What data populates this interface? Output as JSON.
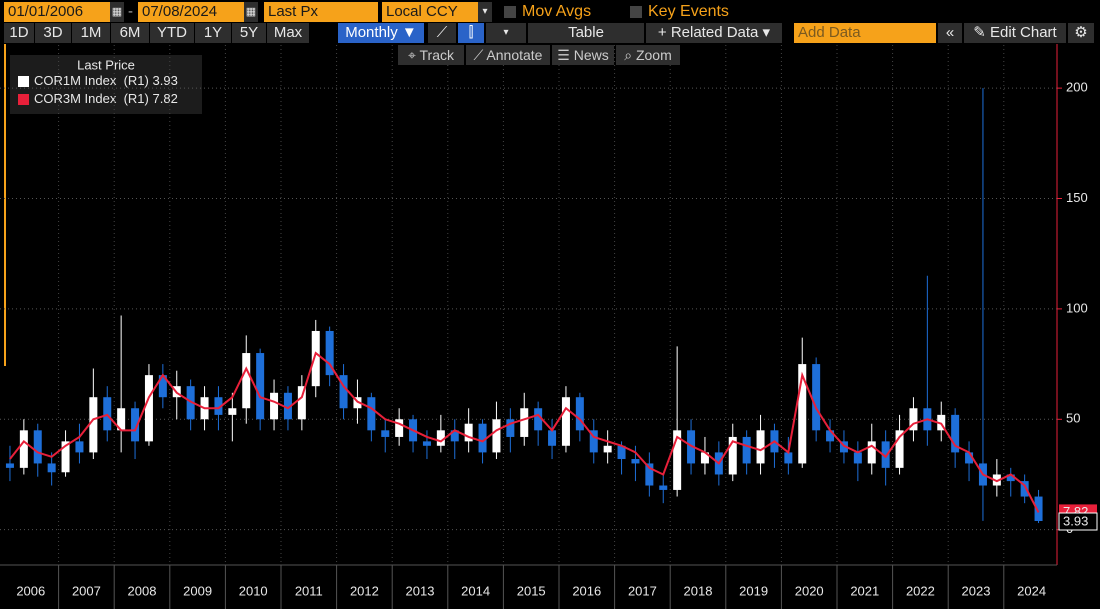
{
  "toolbar": {
    "start_date": "01/01/2006",
    "end_date": "07/08/2024",
    "field": "Last Px",
    "currency": "Local CCY",
    "mov_avgs": "Mov Avgs",
    "key_events": "Key Events",
    "periods": [
      "1D",
      "3D",
      "1M",
      "6M",
      "YTD",
      "1Y",
      "5Y",
      "Max"
    ],
    "frequency": "Monthly ▼",
    "table": "Table",
    "related_data": "+ Related Data ▾",
    "add_data": "Add Data",
    "edit_chart": "Edit Chart",
    "tools": [
      "Track",
      "Annotate",
      "News",
      "Zoom"
    ]
  },
  "chart_data": {
    "type": "candlestick",
    "legend_title": "Last Price",
    "categories": [
      "2006",
      null,
      null,
      null,
      "2007",
      null,
      null,
      null,
      "2008",
      null,
      null,
      null,
      "2009",
      null,
      null,
      null,
      "2010",
      null,
      null,
      null,
      "2011",
      null,
      null,
      null,
      "2012",
      null,
      null,
      null,
      "2013",
      null,
      null,
      null,
      "2014",
      null,
      null,
      null,
      "2015",
      null,
      null,
      null,
      "2016",
      null,
      null,
      null,
      "2017",
      null,
      null,
      null,
      "2018",
      null,
      null,
      null,
      "2019",
      null,
      null,
      null,
      "2020",
      null,
      null,
      null,
      "2021",
      null,
      null,
      null,
      "2022",
      null,
      null,
      null,
      "2023",
      null,
      null,
      null,
      "2024",
      null,
      null
    ],
    "candles": {
      "name": "COR1M Index  (R1)",
      "last_label": "3.93",
      "up_color": "#ffffff",
      "down_color": "#1e6fd9",
      "open": [
        30,
        28,
        45,
        30,
        26,
        40,
        35,
        60,
        45,
        55,
        40,
        70,
        60,
        65,
        50,
        60,
        52,
        55,
        80,
        50,
        62,
        50,
        65,
        90,
        70,
        55,
        60,
        45,
        42,
        50,
        40,
        38,
        45,
        40,
        48,
        35,
        50,
        42,
        55,
        45,
        38,
        60,
        45,
        35,
        38,
        32,
        30,
        20,
        18,
        45,
        30,
        35,
        25,
        42,
        30,
        45,
        35,
        30,
        75,
        45,
        40,
        35,
        30,
        40,
        28,
        45,
        55,
        45,
        52,
        35,
        30,
        20,
        25,
        22,
        15
      ],
      "high": [
        38,
        50,
        48,
        35,
        45,
        48,
        73,
        65,
        97,
        58,
        75,
        75,
        72,
        68,
        65,
        65,
        62,
        88,
        82,
        68,
        65,
        70,
        95,
        92,
        75,
        68,
        62,
        50,
        55,
        52,
        45,
        52,
        50,
        55,
        50,
        58,
        55,
        62,
        58,
        50,
        65,
        62,
        50,
        45,
        40,
        38,
        35,
        25,
        83,
        50,
        42,
        40,
        48,
        45,
        52,
        48,
        42,
        87,
        78,
        50,
        45,
        40,
        48,
        45,
        52,
        60,
        115,
        58,
        55,
        40,
        200,
        32,
        28,
        25,
        18
      ],
      "low": [
        22,
        25,
        24,
        20,
        24,
        30,
        32,
        40,
        35,
        32,
        38,
        55,
        50,
        45,
        45,
        45,
        40,
        48,
        45,
        45,
        45,
        45,
        60,
        65,
        50,
        48,
        40,
        35,
        38,
        35,
        32,
        35,
        32,
        35,
        30,
        32,
        35,
        38,
        38,
        32,
        35,
        40,
        30,
        30,
        25,
        22,
        15,
        12,
        15,
        25,
        25,
        20,
        22,
        25,
        25,
        28,
        25,
        28,
        40,
        35,
        30,
        22,
        25,
        20,
        25,
        40,
        38,
        40,
        28,
        22,
        4,
        15,
        15,
        12,
        3
      ],
      "close": [
        28,
        45,
        30,
        26,
        40,
        35,
        60,
        45,
        55,
        40,
        70,
        60,
        65,
        50,
        60,
        52,
        55,
        80,
        50,
        62,
        50,
        65,
        90,
        70,
        55,
        60,
        45,
        42,
        50,
        40,
        38,
        45,
        40,
        48,
        35,
        50,
        42,
        55,
        45,
        38,
        60,
        45,
        35,
        38,
        32,
        30,
        20,
        18,
        45,
        30,
        35,
        25,
        42,
        30,
        45,
        35,
        30,
        75,
        45,
        40,
        35,
        30,
        40,
        28,
        45,
        55,
        45,
        52,
        35,
        30,
        20,
        25,
        22,
        15,
        3.93
      ]
    },
    "series": [
      {
        "name": "COR3M Index  (R1)",
        "last_label": "7.82",
        "color": "#e8203a",
        "values": [
          32,
          40,
          35,
          33,
          38,
          42,
          50,
          52,
          45,
          45,
          60,
          70,
          62,
          58,
          55,
          55,
          60,
          73,
          60,
          58,
          55,
          60,
          80,
          75,
          65,
          58,
          55,
          50,
          48,
          45,
          42,
          40,
          45,
          42,
          40,
          45,
          48,
          50,
          52,
          45,
          55,
          50,
          42,
          40,
          38,
          35,
          28,
          25,
          42,
          38,
          35,
          30,
          40,
          38,
          36,
          40,
          35,
          70,
          55,
          45,
          38,
          35,
          38,
          33,
          42,
          48,
          50,
          48,
          38,
          35,
          25,
          22,
          25,
          20,
          7.82
        ]
      }
    ],
    "ylim": [
      -16,
      215
    ],
    "yticks": [
      0,
      50,
      100,
      150,
      200
    ],
    "grid": true
  }
}
